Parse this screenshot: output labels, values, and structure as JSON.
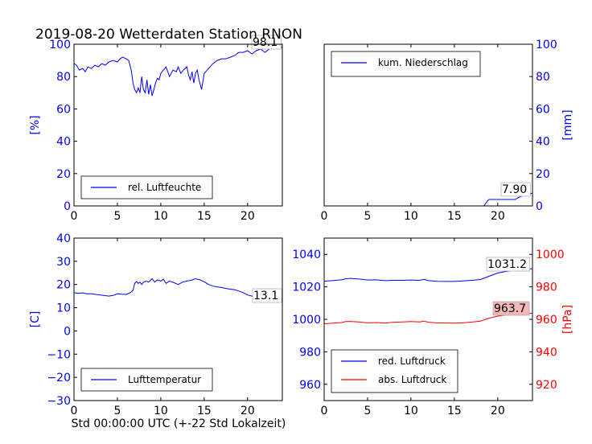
{
  "figure": {
    "title": "2019-08-20 Wetterdaten Station RNON",
    "xlabel": "Std 00:00:00 UTC (+-22 Std Lokalzeit)"
  },
  "colors": {
    "blue": "#0000ff",
    "red": "#ff0000",
    "annot_red_bg": "#f4b8b8",
    "axis": "#000000"
  },
  "chart_data": [
    {
      "type": "line",
      "panel": "humidity",
      "ylabel": "[%]",
      "xlim": [
        0,
        24
      ],
      "ylim": [
        0,
        100
      ],
      "xticks": [
        0,
        5,
        10,
        15,
        20
      ],
      "yticks": [
        0,
        20,
        40,
        60,
        80,
        100
      ],
      "legend_position": "lower-center",
      "annotation": "98.1",
      "series": [
        {
          "name": "rel. Luftfeuchte",
          "color": "#0000ff",
          "x": [
            0,
            0.3,
            0.6,
            1,
            1.3,
            1.6,
            2,
            2.4,
            2.8,
            3.2,
            3.6,
            4,
            4.5,
            5,
            5.3,
            5.6,
            6,
            6.3,
            6.6,
            6.8,
            7,
            7.2,
            7.4,
            7.6,
            7.8,
            8,
            8.2,
            8.4,
            8.6,
            8.8,
            9,
            9.2,
            9.4,
            9.6,
            9.8,
            10,
            10.3,
            10.6,
            11,
            11.4,
            11.8,
            12,
            12.3,
            12.6,
            13,
            13.2,
            13.4,
            13.6,
            13.8,
            14,
            14.2,
            14.4,
            14.7,
            15,
            15.5,
            16,
            16.5,
            17,
            17.5,
            18,
            18.5,
            19,
            19.5,
            20,
            20.5,
            21,
            21.5,
            22,
            22.5,
            23,
            23.5,
            24
          ],
          "y": [
            88,
            87,
            84,
            85,
            83,
            86,
            85,
            87,
            86,
            88,
            87,
            89,
            90,
            89,
            91,
            92,
            91,
            90,
            84,
            76,
            72,
            70,
            73,
            70,
            80,
            72,
            70,
            78,
            69,
            75,
            68,
            72,
            76,
            79,
            78,
            82,
            84,
            86,
            80,
            84,
            83,
            86,
            82,
            84,
            86,
            81,
            78,
            83,
            76,
            82,
            84,
            78,
            72,
            82,
            85,
            88,
            90,
            91,
            91,
            92,
            93,
            95,
            95,
            96,
            94,
            96,
            97,
            95,
            97,
            98,
            98,
            98.1
          ]
        }
      ]
    },
    {
      "type": "line",
      "panel": "precipitation",
      "ylabel": "[mm]",
      "xlim": [
        0,
        24
      ],
      "ylim": [
        0,
        100
      ],
      "xticks": [
        0,
        5,
        10,
        15,
        20
      ],
      "yticks": [
        0,
        20,
        40,
        60,
        80,
        100
      ],
      "legend_position": "upper-left",
      "annotation": "7.90",
      "series": [
        {
          "name": "kum. Niederschlag",
          "color": "#0000ff",
          "x": [
            0,
            18.4,
            18.6,
            18.8,
            19,
            20,
            21,
            22,
            22.4,
            22.6,
            23,
            23.5,
            24
          ],
          "y": [
            0,
            0,
            1.5,
            3,
            4,
            4,
            4,
            4,
            5.2,
            5.6,
            6.5,
            7.2,
            7.9
          ]
        }
      ]
    },
    {
      "type": "line",
      "panel": "temperature",
      "ylabel": "[C]",
      "xlim": [
        0,
        24
      ],
      "ylim": [
        -30,
        40
      ],
      "xticks": [
        0,
        5,
        10,
        15,
        20
      ],
      "yticks": [
        -30,
        -20,
        -10,
        0,
        10,
        20,
        30,
        40
      ],
      "legend_position": "lower-center",
      "annotation": "13.1",
      "series": [
        {
          "name": "Lufttemperatur",
          "color": "#0000ff",
          "x": [
            0,
            0.5,
            1,
            1.5,
            2,
            3,
            4,
            4.5,
            5,
            5.5,
            6,
            6.5,
            6.8,
            7,
            7.2,
            7.4,
            7.6,
            7.8,
            8,
            8.3,
            8.6,
            9,
            9.3,
            9.6,
            10,
            10.3,
            10.6,
            11,
            11.5,
            12,
            12.5,
            13,
            13.5,
            14,
            14.5,
            15,
            15.5,
            16,
            16.5,
            17,
            17.5,
            18,
            18.5,
            19,
            19.5,
            20,
            20.5,
            21,
            21.5,
            22,
            22.5,
            23,
            23.5,
            24
          ],
          "y": [
            16.5,
            16.2,
            16.4,
            16,
            16,
            15.5,
            15,
            15.3,
            16,
            15.8,
            15.7,
            16.5,
            17.5,
            20.5,
            21.3,
            20.5,
            21,
            20,
            21,
            21.5,
            21,
            22.5,
            21,
            22,
            21.5,
            22.3,
            20.5,
            21.5,
            20.8,
            20,
            21,
            21.5,
            21.8,
            22.5,
            22,
            21.2,
            20,
            19.3,
            19,
            18.7,
            18.3,
            18,
            17.8,
            17.2,
            16.5,
            15.5,
            15,
            14,
            13.6,
            13.4,
            13.3,
            13.2,
            13.1,
            13.1
          ]
        }
      ]
    },
    {
      "type": "line",
      "panel": "pressure",
      "ylabel_left": "",
      "ylabel_right": "[hPa]",
      "xlim": [
        0,
        24
      ],
      "ylim_left": [
        950,
        1050
      ],
      "ylim_right": [
        910,
        1010
      ],
      "xticks": [
        0,
        5,
        10,
        15,
        20
      ],
      "yticks_left": [
        960,
        980,
        1000,
        1020,
        1040
      ],
      "yticks_right": [
        920,
        940,
        960,
        980,
        1000
      ],
      "legend_position": "lower-left",
      "annotations": [
        "1031.2",
        "963.7"
      ],
      "series": [
        {
          "name": "red. Luftdruck",
          "color": "#0000ff",
          "axis": "left",
          "x": [
            0,
            1,
            2,
            2.5,
            3,
            4,
            5,
            6,
            7,
            8,
            9,
            10,
            11,
            11.5,
            12,
            13,
            14,
            15,
            16,
            17,
            18,
            18.5,
            19,
            19.5,
            20,
            21,
            22,
            23,
            24
          ],
          "y": [
            1023.5,
            1023.8,
            1024.3,
            1025,
            1025.2,
            1024.8,
            1024.2,
            1024.3,
            1023.8,
            1024,
            1024,
            1024.2,
            1024,
            1024.6,
            1023.8,
            1023.4,
            1023.3,
            1023.3,
            1023.6,
            1024,
            1024.5,
            1025.5,
            1026.5,
            1027.5,
            1028.5,
            1029.5,
            1030.3,
            1030.8,
            1031.2
          ]
        },
        {
          "name": "abs. Luftdruck",
          "color": "#ff0000",
          "axis": "right",
          "x": [
            0,
            1,
            2,
            2.5,
            3,
            4,
            5,
            6,
            7,
            8,
            9,
            10,
            11,
            11.5,
            12,
            13,
            14,
            15,
            16,
            17,
            18,
            18.5,
            19,
            19.5,
            20,
            21,
            22,
            23,
            24
          ],
          "y": [
            957.3,
            957.6,
            958,
            958.6,
            958.7,
            958.4,
            957.8,
            958,
            957.7,
            958.2,
            958.4,
            958.6,
            958.4,
            958.9,
            958.2,
            957.8,
            957.7,
            957.6,
            957.9,
            958.3,
            958.9,
            959.8,
            960.7,
            961.4,
            962,
            962.7,
            963.2,
            963.5,
            963.7
          ]
        }
      ]
    }
  ]
}
